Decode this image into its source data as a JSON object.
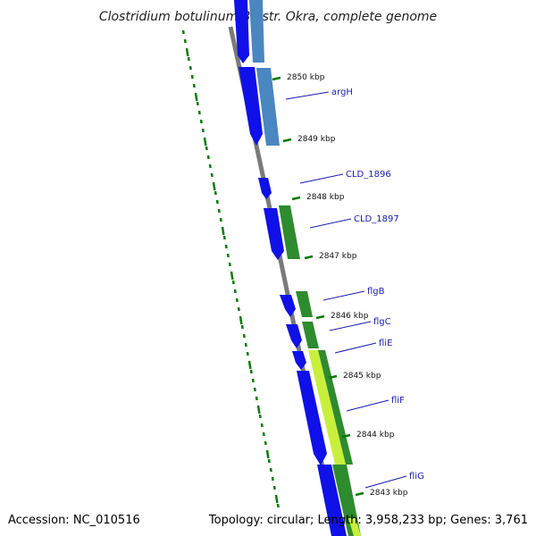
{
  "title": "Clostridium botulinum B1 str. Okra, complete genome",
  "footer": {
    "accession": "Accession: NC_010516",
    "summary": "Topology: circular; Length: 3,958,233 bp; Genes: 3,761"
  },
  "ticks": [
    "2850 kbp",
    "2849 kbp",
    "2848 kbp",
    "2847 kbp",
    "2846 kbp",
    "2845 kbp",
    "2844 kbp",
    "2843 kbp"
  ],
  "genes": [
    "argH",
    "CLD_1896",
    "CLD_1897",
    "flgB",
    "flgC",
    "fliE",
    "fliF",
    "fliG"
  ],
  "colors": {
    "backbone": "#7a7a7a",
    "forward_cds": "#1010e8",
    "steelblue_feature": "#4a86c0",
    "green_feature": "#2e8b2e",
    "lime_feature": "#c8f03a",
    "tick": "#0a7a0a",
    "gc_dots": "#0a7a0a",
    "label": "#1a1ab0"
  }
}
